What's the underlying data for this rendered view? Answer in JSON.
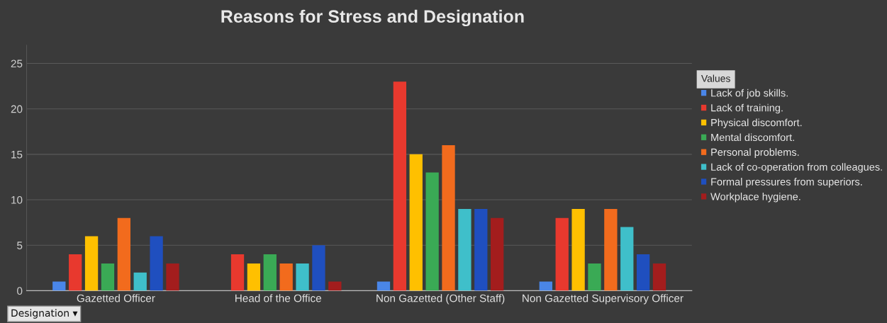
{
  "chart_data": {
    "type": "bar",
    "title": "Reasons for Stress and Designation",
    "categories": [
      "Gazetted Officer",
      "Head of the Office",
      "Non Gazetted (Other Staff)",
      "Non Gazetted Supervisory Officer"
    ],
    "series": [
      {
        "name": "Lack of job skills.",
        "color": "#4a86e8",
        "values": [
          1,
          0,
          1,
          1
        ]
      },
      {
        "name": "Lack of training.",
        "color": "#e8392e",
        "values": [
          4,
          4,
          23,
          8
        ]
      },
      {
        "name": "Physical discomfort.",
        "color": "#ffc000",
        "values": [
          6,
          3,
          15,
          9
        ]
      },
      {
        "name": "Mental discomfort.",
        "color": "#3aaa55",
        "values": [
          3,
          4,
          13,
          3
        ]
      },
      {
        "name": "Personal problems.",
        "color": "#f26b1d",
        "values": [
          8,
          3,
          16,
          9
        ]
      },
      {
        "name": "Lack of co-operation from colleagues.",
        "color": "#3fbfca",
        "values": [
          2,
          3,
          9,
          7
        ]
      },
      {
        "name": "Formal pressures from superiors.",
        "color": "#1f4fbf",
        "values": [
          6,
          5,
          9,
          4
        ]
      },
      {
        "name": "Workplace hygiene.",
        "color": "#a31d1d",
        "values": [
          3,
          1,
          8,
          3
        ]
      }
    ],
    "ylim": [
      0,
      27
    ],
    "yticks": [
      0,
      5,
      10,
      15,
      20,
      25
    ],
    "grid": "y",
    "legend": "right",
    "legend_title": "Values",
    "annotations": [
      "Designation ▾"
    ]
  }
}
